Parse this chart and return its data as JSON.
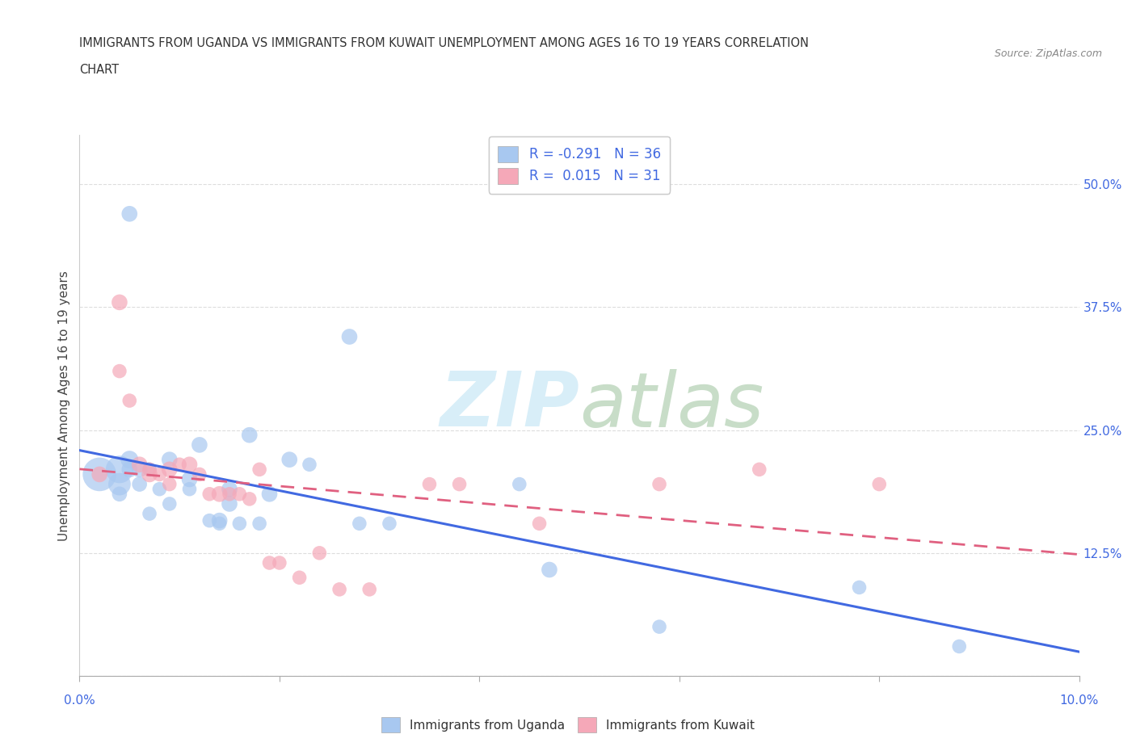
{
  "title_line1": "IMMIGRANTS FROM UGANDA VS IMMIGRANTS FROM KUWAIT UNEMPLOYMENT AMONG AGES 16 TO 19 YEARS CORRELATION",
  "title_line2": "CHART",
  "source_text": "Source: ZipAtlas.com",
  "ylabel": "Unemployment Among Ages 16 to 19 years",
  "xlim": [
    0.0,
    0.1
  ],
  "ylim": [
    0.0,
    0.55
  ],
  "yticks": [
    0.0,
    0.125,
    0.25,
    0.375,
    0.5
  ],
  "ytick_labels": [
    "",
    "12.5%",
    "25.0%",
    "37.5%",
    "50.0%"
  ],
  "xtick_left_label": "0.0%",
  "xtick_right_label": "10.0%",
  "uganda_color": "#a8c8f0",
  "kuwait_color": "#f5a8b8",
  "trendline_uganda_color": "#4169e1",
  "trendline_kuwait_color": "#e06080",
  "watermark_color": "#d8eef8",
  "legend_R_uganda": "-0.291",
  "legend_N_uganda": "36",
  "legend_R_kuwait": "0.015",
  "legend_N_kuwait": "31",
  "uganda_x": [
    0.002,
    0.005,
    0.004,
    0.004,
    0.005,
    0.005,
    0.004,
    0.006,
    0.006,
    0.007,
    0.007,
    0.008,
    0.009,
    0.009,
    0.011,
    0.011,
    0.012,
    0.013,
    0.014,
    0.014,
    0.015,
    0.015,
    0.016,
    0.017,
    0.018,
    0.019,
    0.021,
    0.023,
    0.027,
    0.028,
    0.031,
    0.044,
    0.047,
    0.058,
    0.078,
    0.088
  ],
  "uganda_y": [
    0.205,
    0.47,
    0.21,
    0.195,
    0.22,
    0.21,
    0.185,
    0.21,
    0.195,
    0.165,
    0.21,
    0.19,
    0.22,
    0.175,
    0.2,
    0.19,
    0.235,
    0.158,
    0.158,
    0.155,
    0.175,
    0.19,
    0.155,
    0.245,
    0.155,
    0.185,
    0.22,
    0.215,
    0.345,
    0.155,
    0.155,
    0.195,
    0.108,
    0.05,
    0.09,
    0.03
  ],
  "uganda_sizes": [
    900,
    200,
    600,
    400,
    250,
    200,
    180,
    200,
    180,
    160,
    160,
    160,
    200,
    160,
    200,
    160,
    200,
    160,
    200,
    160,
    200,
    200,
    160,
    200,
    160,
    200,
    200,
    160,
    200,
    160,
    160,
    160,
    200,
    160,
    160,
    160
  ],
  "kuwait_x": [
    0.002,
    0.004,
    0.004,
    0.005,
    0.006,
    0.007,
    0.007,
    0.008,
    0.009,
    0.009,
    0.01,
    0.011,
    0.012,
    0.013,
    0.014,
    0.015,
    0.016,
    0.017,
    0.018,
    0.019,
    0.02,
    0.022,
    0.024,
    0.026,
    0.029,
    0.035,
    0.038,
    0.046,
    0.058,
    0.068,
    0.08
  ],
  "kuwait_y": [
    0.205,
    0.38,
    0.31,
    0.28,
    0.215,
    0.21,
    0.205,
    0.205,
    0.21,
    0.195,
    0.215,
    0.215,
    0.205,
    0.185,
    0.185,
    0.185,
    0.185,
    0.18,
    0.21,
    0.115,
    0.115,
    0.1,
    0.125,
    0.088,
    0.088,
    0.195,
    0.195,
    0.155,
    0.195,
    0.21,
    0.195
  ],
  "kuwait_sizes": [
    200,
    200,
    160,
    160,
    200,
    160,
    200,
    160,
    200,
    160,
    160,
    200,
    160,
    160,
    200,
    160,
    160,
    160,
    160,
    160,
    160,
    160,
    160,
    160,
    160,
    160,
    160,
    160,
    160,
    160,
    160
  ]
}
